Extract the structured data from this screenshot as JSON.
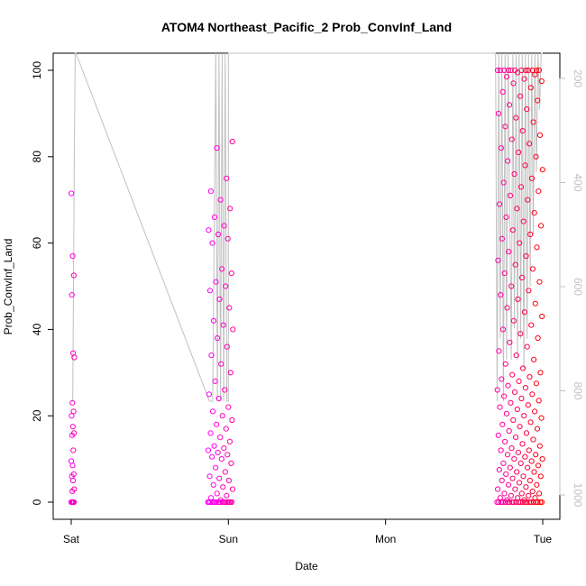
{
  "chart_data": {
    "type": "scatter",
    "title": "ATOM4 Northeast_Pacific_2 Prob_ConvInf_Land",
    "xlabel": "Date",
    "ylabel": "Prob_ConvInf_Land",
    "x_ticks": [
      "Sat",
      "Sun",
      "Mon",
      "Tue"
    ],
    "x_lim_days": [
      -0.15,
      3.12
    ],
    "y_ticks": [
      "0",
      "20",
      "40",
      "60",
      "80",
      "100"
    ],
    "ylim": [
      -4,
      104
    ],
    "y2_ticks": [
      "200",
      "400",
      "600",
      "800",
      "1000"
    ],
    "y2_lim": [
      1020,
      20
    ],
    "y2_axis_color": "#c0c0c0",
    "grid": false,
    "series": [
      {
        "kind": "points",
        "marker": "open-circle",
        "color_scale": [
          "#ff00ff",
          "#ff0000"
        ],
        "clusters": [
          {
            "day_start": 0.0,
            "day_end": 0.02,
            "values": [
              0,
              0,
              0,
              0,
              0,
              0,
              0,
              2.5,
              3,
              5,
              6,
              6.5,
              8.5,
              9.5,
              12,
              15.5,
              16,
              17.5,
              20,
              21,
              23,
              33.5,
              34.5,
              48,
              52.5,
              57,
              71.5
            ]
          },
          {
            "day_start": 0.87,
            "day_end": 1.03,
            "values": [
              0,
              0,
              0,
              0,
              0,
              0,
              0,
              0,
              0,
              0,
              0,
              0,
              0,
              0,
              0,
              0,
              0,
              0.5,
              1,
              1.5,
              2,
              3,
              3.5,
              4,
              5,
              5.5,
              6,
              7,
              8,
              9,
              10,
              10.5,
              11,
              11.5,
              12,
              12.5,
              13,
              14,
              15,
              16,
              17,
              18,
              19,
              20,
              21,
              22,
              24,
              25,
              26,
              28,
              30,
              32,
              34,
              36,
              38,
              40,
              41,
              42,
              45,
              47,
              49,
              50,
              51,
              53,
              54,
              60,
              61,
              62,
              63,
              64,
              66,
              68,
              70,
              72,
              75,
              82,
              83.5
            ]
          },
          {
            "day_start": 2.71,
            "day_end": 3.0,
            "values": [
              0,
              0,
              0,
              0,
              0,
              0,
              0,
              0,
              0,
              0,
              0,
              0,
              0,
              0,
              0,
              0,
              0,
              0,
              0,
              0,
              0,
              0,
              0.5,
              0.5,
              1,
              1,
              1,
              1.5,
              1.5,
              2,
              2,
              2,
              2.5,
              3,
              3,
              3.5,
              4,
              4,
              4.5,
              5,
              5,
              5.5,
              6,
              6,
              6.5,
              7,
              7,
              7.5,
              8,
              8,
              8.5,
              9,
              9,
              9.5,
              10,
              10,
              10.5,
              11,
              11,
              11.5,
              12,
              12,
              12.5,
              13,
              13.5,
              14,
              14.5,
              15,
              15.5,
              16,
              16.5,
              17,
              17.5,
              18,
              18.5,
              19,
              19.5,
              20,
              20.5,
              21,
              21.5,
              22,
              22.5,
              23,
              23.5,
              24,
              24.5,
              25,
              25.5,
              26,
              26.5,
              27,
              27.5,
              28,
              28.5,
              29,
              29.5,
              30,
              31,
              32,
              33,
              34,
              35,
              36,
              37,
              38,
              39,
              40,
              41,
              42,
              43,
              44,
              45,
              46,
              47,
              48,
              49,
              50,
              51,
              52,
              53,
              54,
              55,
              56,
              57,
              58,
              59,
              60,
              61,
              62,
              63,
              64,
              65,
              66,
              67,
              68,
              69,
              70,
              71,
              72,
              73,
              74,
              75,
              76,
              77,
              78,
              79,
              80,
              81,
              82,
              83,
              84,
              85,
              86,
              87,
              88,
              89,
              90,
              91,
              92,
              93,
              94,
              95,
              96,
              97,
              97.5,
              98,
              98.5,
              99,
              99.5,
              100,
              100,
              100,
              100,
              100,
              100,
              100,
              100,
              100,
              100,
              100,
              100
            ]
          }
        ]
      },
      {
        "kind": "line",
        "color": "#c0c0c0",
        "axis": "right",
        "points": [
          [
            0.0,
            820
          ],
          [
            0.01,
            820
          ],
          [
            0.02,
            330
          ],
          [
            0.025,
            20
          ],
          [
            0.03,
            20
          ],
          [
            0.88,
            820
          ],
          [
            0.9,
            820
          ],
          [
            0.92,
            20
          ],
          [
            0.93,
            820
          ],
          [
            0.94,
            20
          ],
          [
            0.95,
            820
          ],
          [
            0.96,
            20
          ],
          [
            0.97,
            820
          ],
          [
            0.98,
            20
          ],
          [
            0.99,
            820
          ],
          [
            1.0,
            820
          ],
          [
            1.0,
            20
          ],
          [
            1.5,
            20
          ],
          [
            2.7,
            60
          ],
          [
            2.71,
            820
          ],
          [
            2.72,
            20
          ],
          [
            2.73,
            700
          ],
          [
            2.74,
            20
          ],
          [
            2.75,
            820
          ],
          [
            2.76,
            20
          ],
          [
            2.77,
            740
          ],
          [
            2.78,
            20
          ],
          [
            2.8,
            740
          ],
          [
            2.81,
            20
          ],
          [
            2.82,
            680
          ],
          [
            2.83,
            20
          ],
          [
            2.84,
            740
          ],
          [
            2.85,
            20
          ],
          [
            2.86,
            700
          ],
          [
            2.87,
            20
          ],
          [
            2.88,
            760
          ],
          [
            2.89,
            20
          ],
          [
            2.9,
            700
          ],
          [
            2.91,
            20
          ],
          [
            2.92,
            600
          ],
          [
            2.93,
            20
          ],
          [
            2.94,
            500
          ],
          [
            2.95,
            20
          ],
          [
            2.96,
            380
          ],
          [
            2.97,
            20
          ],
          [
            2.98,
            260
          ],
          [
            2.99,
            20
          ],
          [
            3.0,
            20
          ]
        ]
      }
    ]
  }
}
